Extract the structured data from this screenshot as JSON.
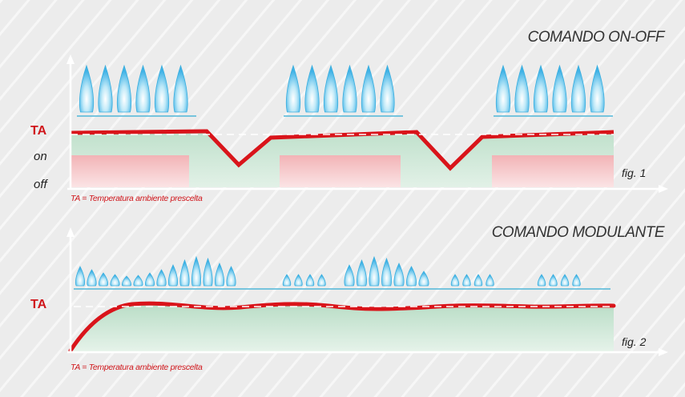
{
  "panel_top": {
    "title": "COMANDO ON-OFF",
    "label_ta": "TA",
    "label_on": "on",
    "label_off": "off",
    "fig_label": "fig. 1",
    "note": "TA = Temperatura ambiente prescelta"
  },
  "panel_bottom": {
    "title": "COMANDO MODULANTE",
    "label_ta": "TA",
    "fig_label": "fig. 2",
    "note": "TA = Temperatura ambiente prescelta"
  },
  "colors": {
    "background": "#ececec",
    "temperature_curve": "#d9141a",
    "setpoint_dash": "#ffffff",
    "heated_area": "#cfe6d8",
    "burner_on_bar": "#f6c4c6",
    "flame": "#5fc4ec",
    "burner_line": "#4fb6d8",
    "axis": "#ffffff"
  },
  "icons": {
    "flame": "gas-flame-icon",
    "burner": "burner-line-icon"
  }
}
